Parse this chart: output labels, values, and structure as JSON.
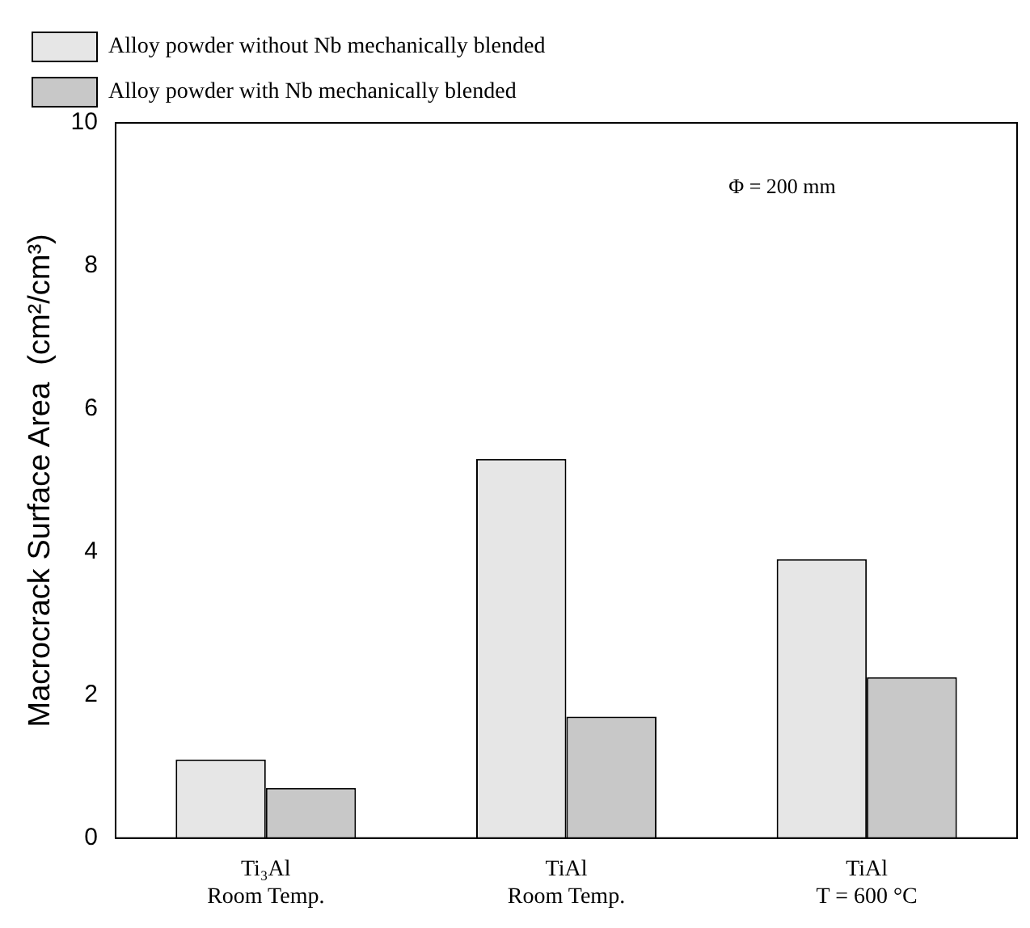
{
  "chart_data": {
    "type": "bar",
    "ylabel": "Macrocrack Surface Area  (cm²/cm³)",
    "categories": [
      "Ti₃Al\nRoom Temp.",
      "TiAl\nRoom Temp.",
      "TiAl\nT = 600 °C"
    ],
    "series": [
      {
        "name": "Alloy powder without Nb mechanically blended",
        "color": "#e6e6e6",
        "values": [
          1.1,
          5.3,
          3.9
        ]
      },
      {
        "name": "Alloy powder with Nb mechanically blended",
        "color": "#c8c8c8",
        "values": [
          0.7,
          1.7,
          2.25
        ]
      }
    ],
    "ylim": [
      0,
      10
    ],
    "yticks": [
      0,
      2,
      4,
      6,
      8,
      10
    ],
    "grid": false,
    "legend": "top left",
    "annotations": [
      "Φ = 200 mm"
    ]
  }
}
